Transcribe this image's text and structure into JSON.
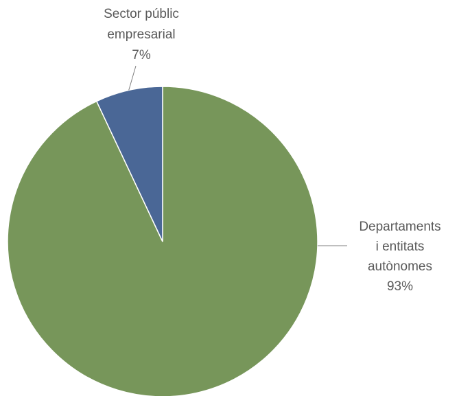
{
  "chart_data": {
    "type": "pie",
    "slices": [
      {
        "label_lines": [
          "Departaments",
          "i entitats",
          "autònomes"
        ],
        "value": 93,
        "percent_label": "93%",
        "color": "#77965A"
      },
      {
        "label_lines": [
          "Sector públic",
          "empresarial"
        ],
        "value": 7,
        "percent_label": "7%",
        "color": "#4A6796"
      }
    ],
    "start_angle": "12 o'clock",
    "direction": "clockwise",
    "legend": "none (direct labels with leader lines)"
  },
  "colors": {
    "leader_line": "#7F7F7F",
    "label_text": "#595959",
    "slice_border": "#ffffff"
  }
}
